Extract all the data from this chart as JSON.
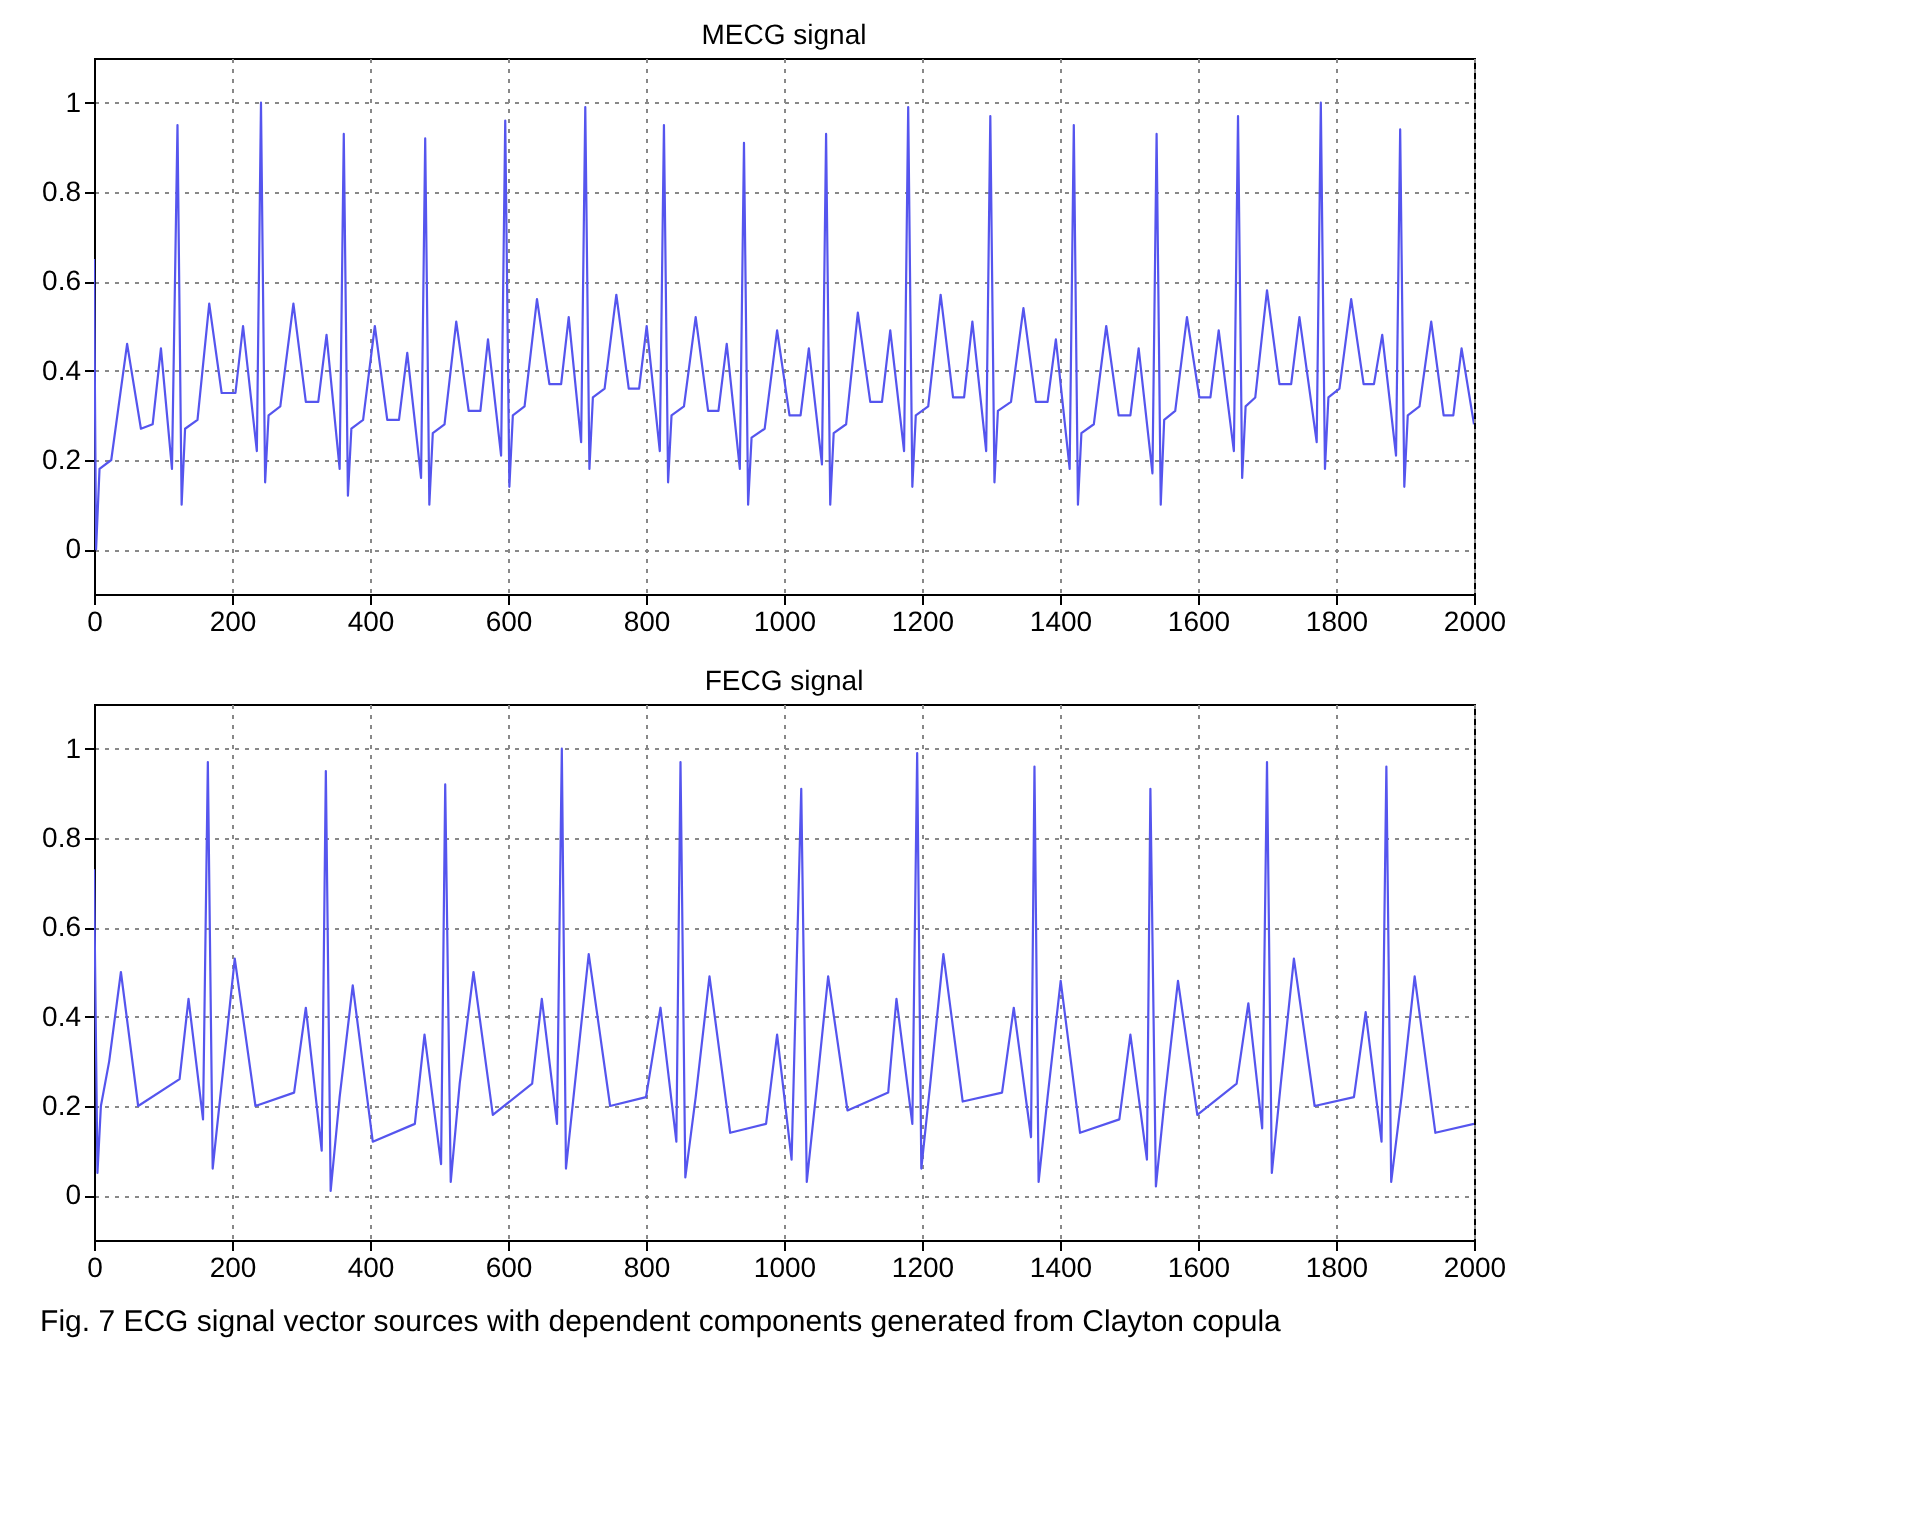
{
  "chart_data": [
    {
      "type": "line",
      "title": "MECG signal",
      "xlim": [
        0,
        2000
      ],
      "xticks": [
        0,
        200,
        400,
        600,
        800,
        1000,
        1200,
        1400,
        1600,
        1800,
        2000
      ],
      "ylim": [
        -0.1,
        1.1
      ],
      "yticks": [
        0,
        0.2,
        0.4,
        0.6,
        0.8,
        1
      ],
      "grid": true,
      "line_style": "solid",
      "series": [
        {
          "color": "#5555ee",
          "x": [
            0,
            3,
            8,
            25,
            48,
            68,
            85,
            97,
            113,
            121,
            127,
            132,
            150,
            167,
            185,
            205,
            216,
            236,
            242,
            248,
            253,
            270,
            289,
            307,
            325,
            337,
            356,
            362,
            368,
            373,
            390,
            407,
            425,
            442,
            454,
            474,
            480,
            486,
            491,
            508,
            525,
            543,
            560,
            571,
            590,
            596,
            602,
            607,
            624,
            642,
            660,
            677,
            688,
            706,
            712,
            718,
            723,
            740,
            757,
            775,
            790,
            801,
            820,
            826,
            832,
            837,
            855,
            872,
            890,
            905,
            917,
            936,
            942,
            948,
            953,
            972,
            990,
            1008,
            1024,
            1036,
            1055,
            1061,
            1067,
            1072,
            1090,
            1107,
            1125,
            1142,
            1154,
            1174,
            1180,
            1186,
            1191,
            1209,
            1227,
            1245,
            1261,
            1273,
            1293,
            1299,
            1305,
            1310,
            1329,
            1347,
            1365,
            1382,
            1394,
            1414,
            1420,
            1426,
            1431,
            1449,
            1467,
            1485,
            1502,
            1514,
            1534,
            1540,
            1546,
            1551,
            1567,
            1584,
            1602,
            1618,
            1630,
            1652,
            1658,
            1664,
            1669,
            1683,
            1700,
            1718,
            1735,
            1747,
            1772,
            1778,
            1784,
            1789,
            1805,
            1822,
            1840,
            1855,
            1867,
            1887,
            1893,
            1899,
            1904,
            1921,
            1938,
            1956,
            1970,
            1982,
            2000
          ],
          "values": [
            0.65,
            0.0,
            0.18,
            0.2,
            0.46,
            0.27,
            0.28,
            0.45,
            0.18,
            0.95,
            0.1,
            0.27,
            0.29,
            0.55,
            0.35,
            0.35,
            0.5,
            0.22,
            1.0,
            0.15,
            0.3,
            0.32,
            0.55,
            0.33,
            0.33,
            0.48,
            0.18,
            0.93,
            0.12,
            0.27,
            0.29,
            0.5,
            0.29,
            0.29,
            0.44,
            0.16,
            0.92,
            0.1,
            0.26,
            0.28,
            0.51,
            0.31,
            0.31,
            0.47,
            0.21,
            0.96,
            0.14,
            0.3,
            0.32,
            0.56,
            0.37,
            0.37,
            0.52,
            0.24,
            0.99,
            0.18,
            0.34,
            0.36,
            0.57,
            0.36,
            0.36,
            0.5,
            0.22,
            0.95,
            0.15,
            0.3,
            0.32,
            0.52,
            0.31,
            0.31,
            0.46,
            0.18,
            0.91,
            0.1,
            0.25,
            0.27,
            0.49,
            0.3,
            0.3,
            0.45,
            0.19,
            0.93,
            0.1,
            0.26,
            0.28,
            0.53,
            0.33,
            0.33,
            0.49,
            0.22,
            0.99,
            0.14,
            0.3,
            0.32,
            0.57,
            0.34,
            0.34,
            0.51,
            0.22,
            0.97,
            0.15,
            0.31,
            0.33,
            0.54,
            0.33,
            0.33,
            0.47,
            0.18,
            0.95,
            0.1,
            0.26,
            0.28,
            0.5,
            0.3,
            0.3,
            0.45,
            0.17,
            0.93,
            0.1,
            0.29,
            0.31,
            0.52,
            0.34,
            0.34,
            0.49,
            0.22,
            0.97,
            0.16,
            0.32,
            0.34,
            0.58,
            0.37,
            0.37,
            0.52,
            0.24,
            1.0,
            0.18,
            0.34,
            0.36,
            0.56,
            0.37,
            0.37,
            0.48,
            0.21,
            0.94,
            0.14,
            0.3,
            0.32,
            0.51,
            0.3,
            0.3,
            0.45,
            0.28
          ]
        }
      ]
    },
    {
      "type": "line",
      "title": "FECG signal",
      "xlim": [
        0,
        2000
      ],
      "xticks": [
        0,
        200,
        400,
        600,
        800,
        1000,
        1200,
        1400,
        1600,
        1800,
        2000
      ],
      "ylim": [
        -0.1,
        1.1
      ],
      "yticks": [
        0,
        0.2,
        0.4,
        0.6,
        0.8,
        1
      ],
      "grid": true,
      "line_style": "solid",
      "annotations": [
        "Fig. 7  ECG signal vector sources with dependent components generated from Clayton copula"
      ],
      "series": [
        {
          "color": "#5555ee",
          "x": [
            0,
            5,
            10,
            22,
            39,
            64,
            124,
            137,
            158,
            165,
            172,
            185,
            204,
            234,
            290,
            307,
            330,
            336,
            343,
            356,
            375,
            404,
            465,
            479,
            503,
            509,
            517,
            530,
            550,
            578,
            635,
            649,
            671,
            678,
            684,
            697,
            717,
            748,
            800,
            821,
            844,
            850,
            857,
            872,
            892,
            922,
            974,
            990,
            1011,
            1025,
            1033,
            1046,
            1064,
            1092,
            1151,
            1163,
            1186,
            1193,
            1199,
            1212,
            1231,
            1259,
            1316,
            1333,
            1358,
            1363,
            1369,
            1382,
            1401,
            1429,
            1486,
            1502,
            1526,
            1531,
            1539,
            1552,
            1571,
            1599,
            1656,
            1673,
            1693,
            1700,
            1707,
            1720,
            1739,
            1769,
            1826,
            1843,
            1866,
            1873,
            1880,
            1895,
            1914,
            1944,
            2000
          ],
          "values": [
            0.73,
            0.05,
            0.2,
            0.3,
            0.5,
            0.2,
            0.26,
            0.44,
            0.17,
            0.97,
            0.06,
            0.25,
            0.53,
            0.2,
            0.23,
            0.42,
            0.1,
            0.95,
            0.01,
            0.22,
            0.47,
            0.12,
            0.16,
            0.36,
            0.07,
            0.92,
            0.03,
            0.25,
            0.5,
            0.18,
            0.25,
            0.44,
            0.16,
            1.0,
            0.06,
            0.25,
            0.54,
            0.2,
            0.22,
            0.42,
            0.12,
            0.97,
            0.04,
            0.22,
            0.49,
            0.14,
            0.16,
            0.36,
            0.08,
            0.91,
            0.03,
            0.22,
            0.49,
            0.19,
            0.23,
            0.44,
            0.16,
            0.99,
            0.06,
            0.25,
            0.54,
            0.21,
            0.23,
            0.42,
            0.13,
            0.96,
            0.03,
            0.22,
            0.48,
            0.14,
            0.17,
            0.36,
            0.08,
            0.91,
            0.02,
            0.22,
            0.48,
            0.18,
            0.25,
            0.43,
            0.15,
            0.97,
            0.05,
            0.25,
            0.53,
            0.2,
            0.22,
            0.41,
            0.12,
            0.96,
            0.03,
            0.22,
            0.49,
            0.14,
            0.16
          ]
        }
      ]
    }
  ]
}
